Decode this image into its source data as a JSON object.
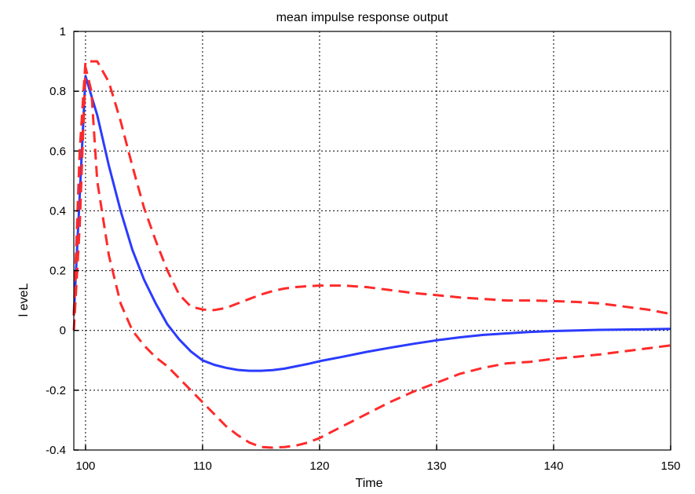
{
  "chart_data": {
    "type": "line",
    "title": "mean impulse response output",
    "xlabel": "Time",
    "ylabel": "l eveL",
    "xlim": [
      99,
      150
    ],
    "ylim": [
      -0.4,
      1
    ],
    "grid": true,
    "x_ticks": [
      100,
      110,
      120,
      130,
      140,
      150
    ],
    "y_ticks": [
      -0.4,
      -0.2,
      0,
      0.2,
      0.4,
      0.6,
      0.8,
      1
    ],
    "y_tick_labels": [
      "-0.4",
      "-0.2",
      "0",
      "0.2",
      "0.4",
      "0.6",
      "0.8",
      "1"
    ],
    "series": [
      {
        "style": "solid",
        "color": "#2b3bff",
        "x": [
          99,
          99.5,
          100,
          101,
          102,
          103,
          104,
          105,
          106,
          107,
          108,
          109,
          110,
          111,
          112,
          113,
          114,
          115,
          116,
          117,
          118,
          119,
          120,
          122,
          124,
          126,
          128,
          130,
          132,
          134,
          136,
          138,
          140,
          142,
          144,
          146,
          148,
          150
        ],
        "y": [
          0.05,
          0.45,
          0.85,
          0.72,
          0.55,
          0.4,
          0.27,
          0.17,
          0.09,
          0.02,
          -0.03,
          -0.07,
          -0.1,
          -0.115,
          -0.125,
          -0.132,
          -0.135,
          -0.135,
          -0.133,
          -0.128,
          -0.12,
          -0.112,
          -0.103,
          -0.088,
          -0.072,
          -0.058,
          -0.045,
          -0.033,
          -0.023,
          -0.015,
          -0.01,
          -0.005,
          -0.002,
          0.0,
          0.002,
          0.003,
          0.004,
          0.005
        ]
      },
      {
        "style": "dashed",
        "color": "#ff2a2a",
        "x": [
          99,
          99.5,
          100,
          100.5,
          101,
          102,
          103,
          104,
          105,
          106,
          107,
          108,
          109,
          110,
          111,
          112,
          113,
          114,
          115,
          116,
          117,
          118,
          119,
          120,
          122,
          124,
          126,
          128,
          130,
          132,
          134,
          136,
          138,
          140,
          142,
          144,
          146,
          148,
          150
        ],
        "y": [
          0.05,
          0.6,
          0.9,
          0.9,
          0.9,
          0.83,
          0.7,
          0.55,
          0.41,
          0.3,
          0.2,
          0.12,
          0.08,
          0.07,
          0.068,
          0.075,
          0.09,
          0.105,
          0.12,
          0.132,
          0.14,
          0.145,
          0.148,
          0.15,
          0.15,
          0.145,
          0.135,
          0.125,
          0.118,
          0.11,
          0.105,
          0.1,
          0.1,
          0.098,
          0.095,
          0.09,
          0.08,
          0.07,
          0.055
        ]
      },
      {
        "style": "dashed",
        "color": "#ff2a2a",
        "x": [
          99,
          99.5,
          100,
          100.5,
          101,
          102,
          103,
          104,
          105,
          106,
          107,
          108,
          109,
          110,
          111,
          112,
          113,
          114,
          115,
          116,
          117,
          118,
          119,
          120,
          122,
          124,
          126,
          128,
          130,
          132,
          134,
          136,
          138,
          140,
          142,
          144,
          146,
          148,
          150
        ],
        "y": [
          0.0,
          0.35,
          0.88,
          0.8,
          0.5,
          0.25,
          0.09,
          0.0,
          -0.05,
          -0.09,
          -0.12,
          -0.16,
          -0.2,
          -0.24,
          -0.28,
          -0.32,
          -0.35,
          -0.375,
          -0.39,
          -0.392,
          -0.39,
          -0.385,
          -0.375,
          -0.36,
          -0.32,
          -0.28,
          -0.24,
          -0.205,
          -0.175,
          -0.145,
          -0.125,
          -0.11,
          -0.105,
          -0.095,
          -0.088,
          -0.08,
          -0.07,
          -0.06,
          -0.05
        ]
      }
    ]
  }
}
